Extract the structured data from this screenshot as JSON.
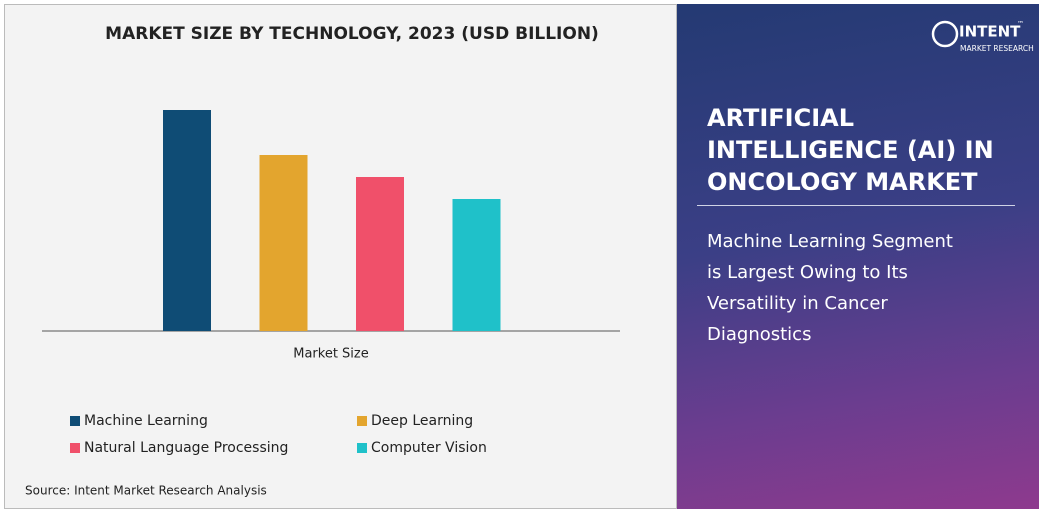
{
  "chart_data": {
    "type": "bar",
    "title": "MARKET SIZE BY TECHNOLOGY, 2023  (USD BILLION)",
    "categories": [
      "Market Size"
    ],
    "series": [
      {
        "name": "Machine Learning",
        "color": "#0f4c75",
        "values": [
          2.21
        ]
      },
      {
        "name": "Deep Learning",
        "color": "#e3a52e",
        "values": [
          1.76
        ]
      },
      {
        "name": "Natural Language Processing",
        "color": "#f0506a",
        "values": [
          1.54
        ]
      },
      {
        "name": "Computer Vision",
        "color": "#1fc1c9",
        "values": [
          1.32
        ]
      }
    ],
    "source": "Source: Intent Market Research Analysis"
  },
  "logo": {
    "name": "INTENT",
    "mark": "™",
    "tagline": "MARKET RESEARCH"
  },
  "panel": {
    "heading": [
      "ARTIFICIAL",
      "INTELLIGENCE (AI) IN",
      "ONCOLOGY MARKET"
    ],
    "subtitle": [
      "Machine Learning Segment",
      "is Largest Owing to Its",
      "Versatility in Cancer",
      "Diagnostics"
    ]
  }
}
